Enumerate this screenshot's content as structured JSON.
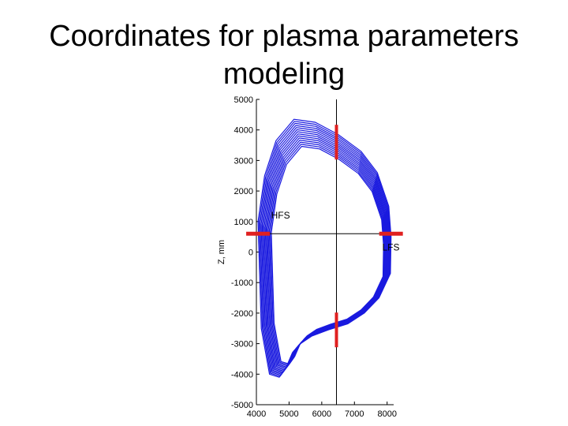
{
  "slide": {
    "title_line1": "Coordinates for plasma parameters",
    "title_line2": "modeling"
  },
  "chart_data": {
    "type": "line",
    "title": "",
    "xlabel": "",
    "ylabel": "Z, mm",
    "xlim": [
      4000,
      8200
    ],
    "ylim": [
      -5000,
      5000
    ],
    "x_ticks": [
      4000,
      5000,
      6000,
      7000,
      8000
    ],
    "x_tick_labels": [
      "4000",
      "5000",
      "6000",
      "7000",
      "8000"
    ],
    "y_ticks": [
      5000,
      4000,
      3000,
      2000,
      1000,
      0,
      -1000,
      -2000,
      -3000,
      -4000,
      -5000
    ],
    "y_tick_labels": [
      "5000",
      "4000",
      "3000",
      "2000",
      "1000",
      "0",
      "-1000",
      "-2000",
      "-3000",
      "-4000",
      "-5000"
    ],
    "grid": false,
    "contour_color": "#1a1adf",
    "marker_color": "#e02020",
    "boundary": {
      "x": [
        4050,
        4250,
        4600,
        5150,
        5800,
        6500,
        7200,
        7700,
        8050,
        8120,
        8100,
        7750,
        7300,
        6800,
        6200,
        5700,
        5350,
        5100,
        4900,
        4700,
        4400,
        4150,
        4050
      ],
      "y": [
        1000,
        2500,
        3650,
        4350,
        4250,
        3850,
        3300,
        2600,
        1500,
        500,
        -700,
        -1500,
        -2000,
        -2350,
        -2550,
        -2750,
        -3000,
        -3300,
        -3800,
        -4100,
        -4000,
        -2500,
        1000
      ]
    },
    "contour_count": 14,
    "lines": [
      {
        "orientation": "vertical",
        "x": 6450
      },
      {
        "orientation": "horizontal",
        "y": 600
      }
    ],
    "markers": [
      {
        "x": 6450,
        "y": 3600,
        "orientation": "vertical"
      },
      {
        "x": 6450,
        "y": -2550,
        "orientation": "vertical"
      },
      {
        "x": 4050,
        "y": 600,
        "orientation": "horizontal"
      },
      {
        "x": 8120,
        "y": 600,
        "orientation": "horizontal"
      }
    ],
    "annotations": [
      {
        "text": "HFS",
        "x": 4450,
        "y": 1100
      },
      {
        "text": "LFS",
        "x": 7850,
        "y": 50
      }
    ]
  }
}
